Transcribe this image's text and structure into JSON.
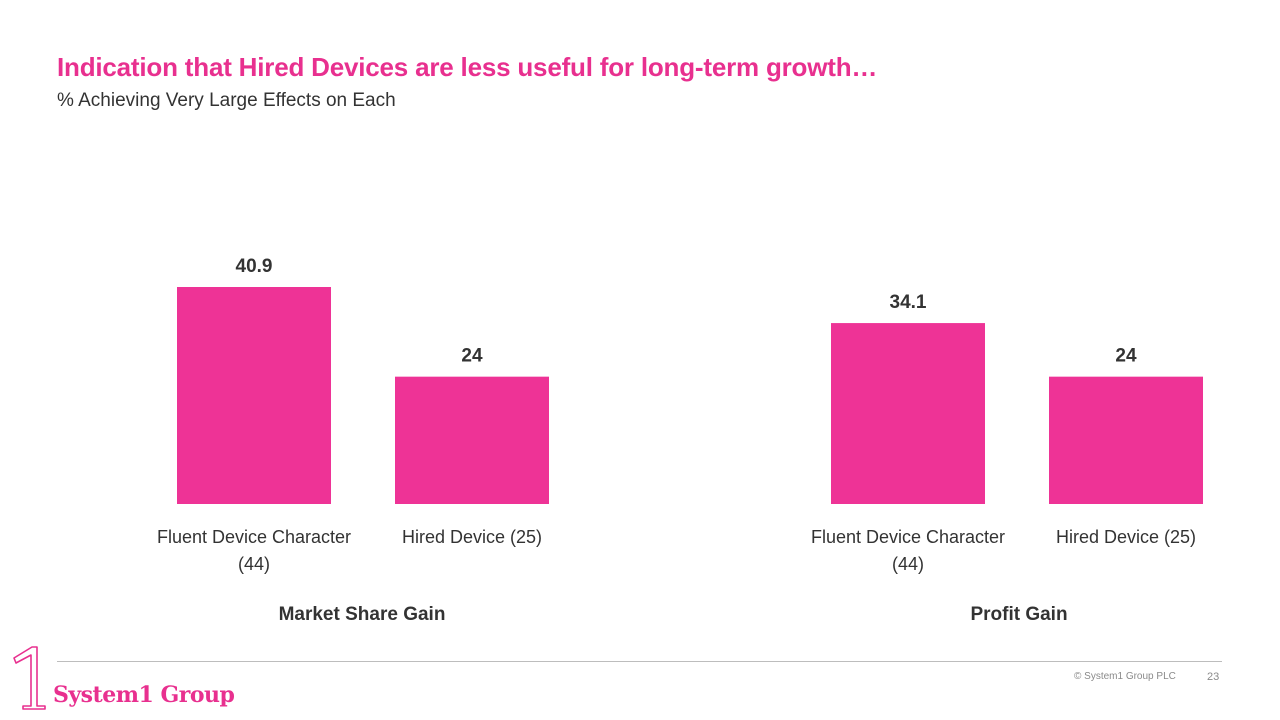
{
  "header": {
    "title": "Indication that Hired Devices are less useful for long-term growth…",
    "subtitle": "% Achieving Very Large Effects on Each"
  },
  "chart_data": {
    "type": "bar",
    "title": "Indication that Hired Devices are less useful for long-term growth…",
    "subtitle": "% Achieving Very Large Effects on Each",
    "xlabel": "",
    "ylabel": "",
    "ylim": [
      0,
      45
    ],
    "grid": false,
    "bar_color": "#ee3396",
    "groups": [
      {
        "name": "Market Share Gain",
        "categories": [
          [
            "Fluent Device Character",
            "(44)"
          ],
          [
            "Hired Device (25)"
          ]
        ],
        "values": [
          40.9,
          24
        ],
        "labels": [
          "40.9",
          "24"
        ]
      },
      {
        "name": "Profit Gain",
        "categories": [
          [
            "Fluent Device Character",
            "(44)"
          ],
          [
            "Hired Device (25)"
          ]
        ],
        "values": [
          34.1,
          24
        ],
        "labels": [
          "34.1",
          "24"
        ]
      }
    ]
  },
  "footer": {
    "copyright": "© System1 Group PLC",
    "page_number": "23",
    "logo_text": "System1 Group",
    "logo_numeral": "1"
  },
  "colors": {
    "accent": "#e8308f",
    "bar": "#ee3396",
    "text": "#333333"
  }
}
